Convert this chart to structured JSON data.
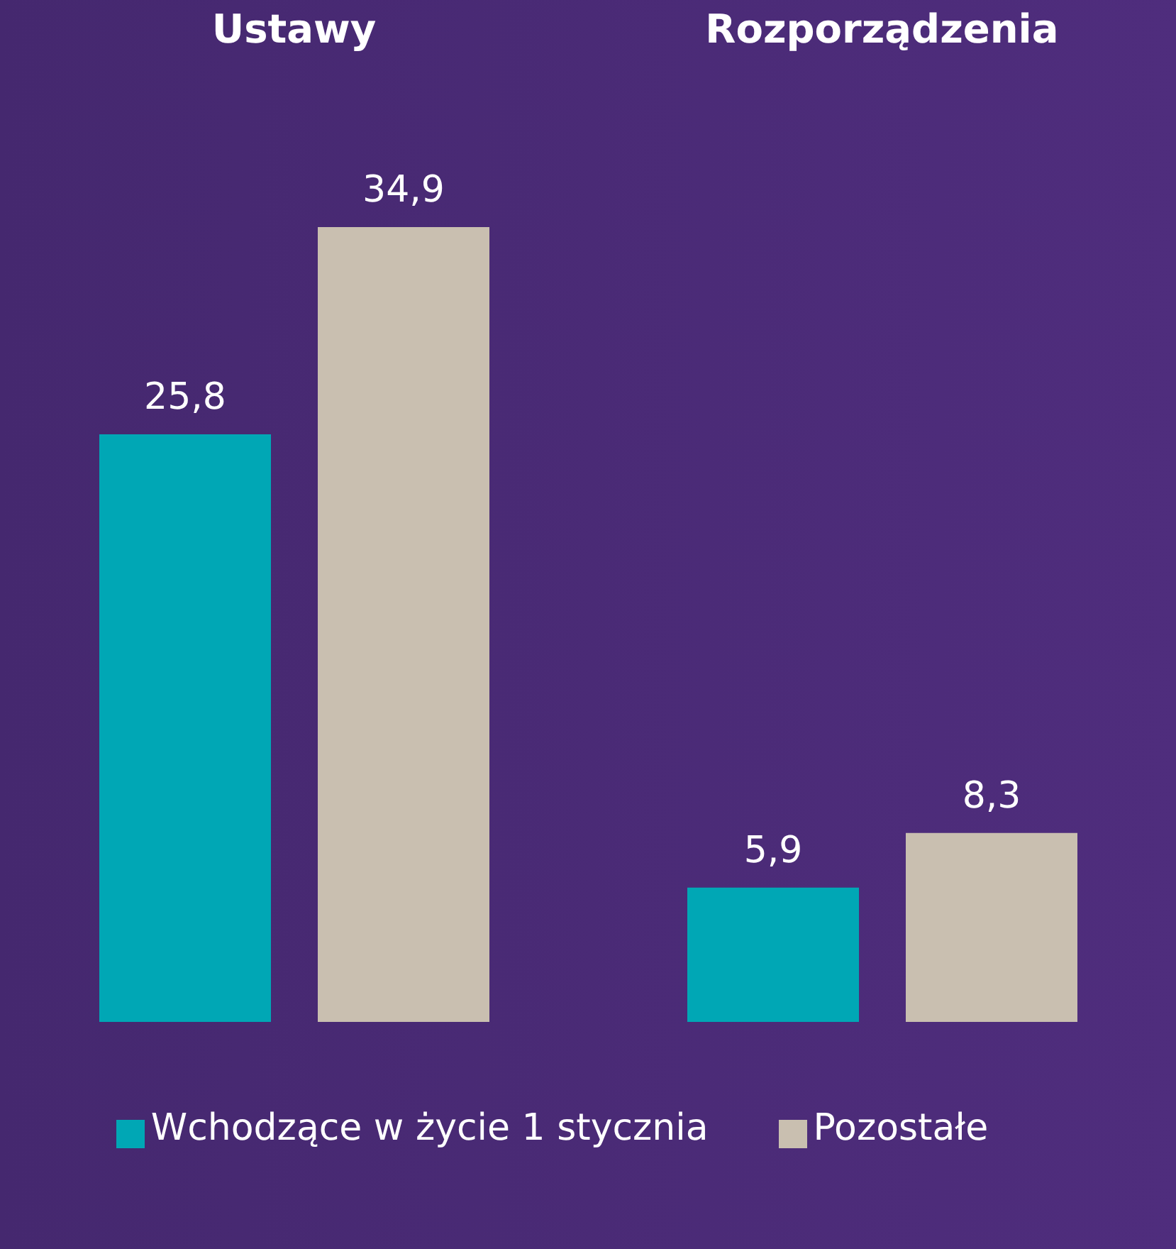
{
  "chart_data": {
    "type": "bar",
    "categories": [
      "Ustawy",
      "Rozporządzenia"
    ],
    "series": [
      {
        "name": "Wchodzące w życie 1 stycznia",
        "color": "#00a7b5",
        "values": [
          25.8,
          5.9
        ],
        "value_labels": [
          "25,8",
          "5,9"
        ]
      },
      {
        "name": "Pozostałe",
        "color": "#c9bfb0",
        "values": [
          34.9,
          8.3
        ],
        "value_labels": [
          "34,9",
          "8,3"
        ]
      }
    ],
    "legend": "bottom",
    "grid": false
  }
}
